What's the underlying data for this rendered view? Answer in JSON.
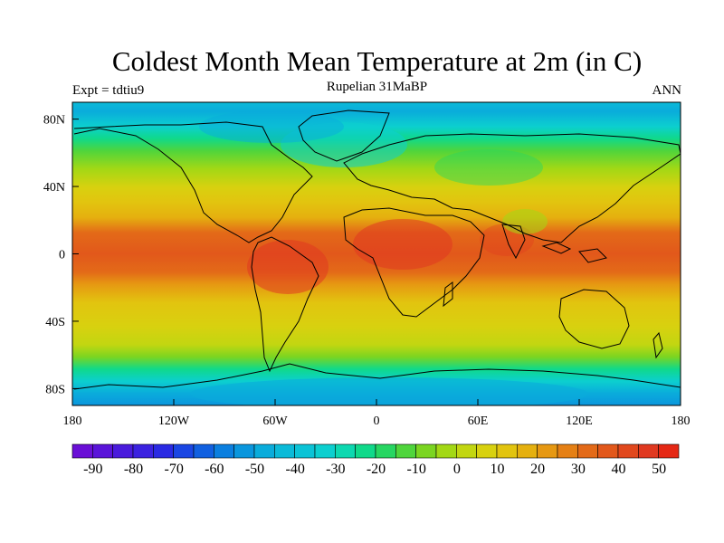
{
  "title": "Coldest Month Mean Temperature at 2m (in C)",
  "subtitle": "Rupelian  31MaBP",
  "left_label": "Expt = tdtiu9",
  "right_label": "ANN",
  "map": {
    "lat_ticks": [
      "80N",
      "40N",
      "0",
      "40S",
      "80S"
    ],
    "lon_ticks": [
      "180",
      "120W",
      "60W",
      "0",
      "60E",
      "120E",
      "180"
    ]
  },
  "colorbar": {
    "labels": [
      "-90",
      "-80",
      "-70",
      "-60",
      "-50",
      "-40",
      "-30",
      "-20",
      "-10",
      "0",
      "10",
      "20",
      "30",
      "40",
      "50"
    ],
    "colors": [
      "#6a0fd6",
      "#5a14d9",
      "#4a1bdc",
      "#3b22e0",
      "#2a2ae3",
      "#1a46e3",
      "#1160e0",
      "#0b7fdf",
      "#0a96dd",
      "#0aacdb",
      "#0bbad8",
      "#0bc3d6",
      "#0ccfcf",
      "#0dd8b0",
      "#10d98a",
      "#27d662",
      "#4fd53c",
      "#7bd521",
      "#a3d815",
      "#c2d611",
      "#d8d10f",
      "#e2c40f",
      "#e5b00f",
      "#e69812",
      "#e58015",
      "#e36a18",
      "#e2581b",
      "#e1481d",
      "#e03920",
      "#e52815"
    ]
  }
}
